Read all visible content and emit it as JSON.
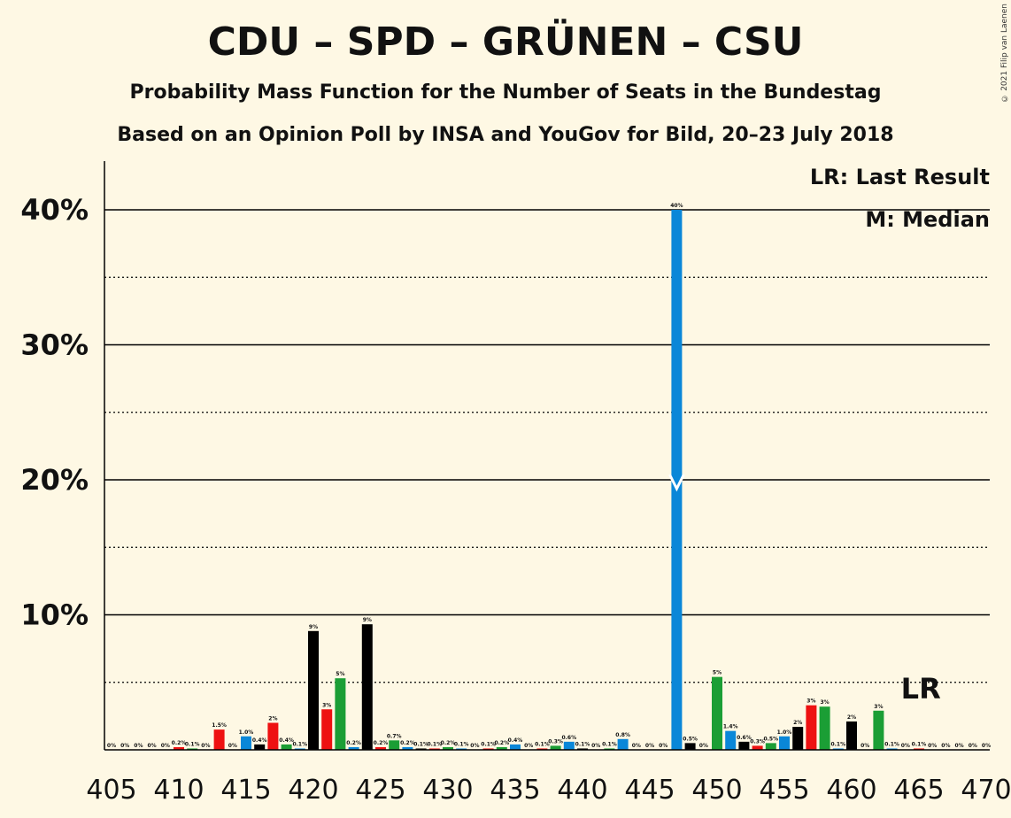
{
  "title": "CDU – SPD – GRÜNEN – CSU",
  "subtitle_1": "Probability Mass Function for the Number of Seats in the Bundestag",
  "subtitle_2": "Based on an Opinion Poll by INSA and YouGov for Bild, 20–23 July 2018",
  "copyright": "© 2021 Filip van Laenen",
  "legend": {
    "last_result": "LR: Last Result",
    "median": "M: Median"
  },
  "markers": {
    "last_result_label": "LR",
    "last_result_seat": 466,
    "median_label": "M",
    "median_seat": 447
  },
  "colors": {
    "background": "#fef8e4",
    "black": "#000000",
    "red": "#ee1111",
    "green": "#1b9e35",
    "blue": "#0a87d8"
  },
  "chart_data": {
    "type": "bar",
    "xlim": [
      405,
      470
    ],
    "ylim": [
      0,
      40
    ],
    "x_ticks": [
      "405",
      "410",
      "415",
      "420",
      "425",
      "430",
      "435",
      "440",
      "445",
      "450",
      "455",
      "460",
      "465",
      "470"
    ],
    "y_ticks": [
      "10%",
      "20%",
      "30%",
      "40%"
    ],
    "bars": [
      {
        "x": 405,
        "value": 0,
        "label": "0%",
        "color": "black"
      },
      {
        "x": 406,
        "value": 0,
        "label": "0%",
        "color": "red"
      },
      {
        "x": 407,
        "value": 0,
        "label": "0%",
        "color": "green"
      },
      {
        "x": 408,
        "value": 0,
        "label": "0%",
        "color": "blue"
      },
      {
        "x": 409,
        "value": 0,
        "label": "0%",
        "color": "black"
      },
      {
        "x": 410,
        "value": 0.2,
        "label": "0.2%",
        "color": "red"
      },
      {
        "x": 411,
        "value": 0.1,
        "label": "0.1%",
        "color": "green"
      },
      {
        "x": 412,
        "value": 0,
        "label": "0%",
        "color": "blue"
      },
      {
        "x": 413,
        "value": 1.5,
        "label": "1.5%",
        "color": "red"
      },
      {
        "x": 414,
        "value": 0,
        "label": "0%",
        "color": "green"
      },
      {
        "x": 415,
        "value": 1.0,
        "label": "1.0%",
        "color": "blue"
      },
      {
        "x": 416,
        "value": 0.4,
        "label": "0.4%",
        "color": "black"
      },
      {
        "x": 417,
        "value": 2,
        "label": "2%",
        "color": "red"
      },
      {
        "x": 418,
        "value": 0.4,
        "label": "0.4%",
        "color": "green"
      },
      {
        "x": 419,
        "value": 0.1,
        "label": "0.1%",
        "color": "blue"
      },
      {
        "x": 420,
        "value": 8.8,
        "label": "9%",
        "color": "black"
      },
      {
        "x": 421,
        "value": 3,
        "label": "3%",
        "color": "red"
      },
      {
        "x": 422,
        "value": 5.3,
        "label": "5%",
        "color": "green"
      },
      {
        "x": 423,
        "value": 0.2,
        "label": "0.2%",
        "color": "blue"
      },
      {
        "x": 424,
        "value": 9.3,
        "label": "9%",
        "color": "black"
      },
      {
        "x": 425,
        "value": 0.2,
        "label": "0.2%",
        "color": "red"
      },
      {
        "x": 426,
        "value": 0.7,
        "label": "0.7%",
        "color": "green"
      },
      {
        "x": 427,
        "value": 0.2,
        "label": "0.2%",
        "color": "blue"
      },
      {
        "x": 428,
        "value": 0.1,
        "label": "0.1%",
        "color": "black"
      },
      {
        "x": 429,
        "value": 0.1,
        "label": "0.1%",
        "color": "red"
      },
      {
        "x": 430,
        "value": 0.2,
        "label": "0.2%",
        "color": "green"
      },
      {
        "x": 431,
        "value": 0.1,
        "label": "0.1%",
        "color": "blue"
      },
      {
        "x": 432,
        "value": 0,
        "label": "0%",
        "color": "black"
      },
      {
        "x": 433,
        "value": 0.1,
        "label": "0.1%",
        "color": "red"
      },
      {
        "x": 434,
        "value": 0.2,
        "label": "0.2%",
        "color": "green"
      },
      {
        "x": 435,
        "value": 0.4,
        "label": "0.4%",
        "color": "blue"
      },
      {
        "x": 436,
        "value": 0,
        "label": "0%",
        "color": "black"
      },
      {
        "x": 437,
        "value": 0.1,
        "label": "0.1%",
        "color": "red"
      },
      {
        "x": 438,
        "value": 0.3,
        "label": "0.3%",
        "color": "green"
      },
      {
        "x": 439,
        "value": 0.6,
        "label": "0.6%",
        "color": "blue"
      },
      {
        "x": 440,
        "value": 0.1,
        "label": "0.1%",
        "color": "black"
      },
      {
        "x": 441,
        "value": 0,
        "label": "0%",
        "color": "red"
      },
      {
        "x": 442,
        "value": 0.1,
        "label": "0.1%",
        "color": "green"
      },
      {
        "x": 443,
        "value": 0.8,
        "label": "0.8%",
        "color": "blue"
      },
      {
        "x": 444,
        "value": 0,
        "label": "0%",
        "color": "black"
      },
      {
        "x": 445,
        "value": 0,
        "label": "0%",
        "color": "red"
      },
      {
        "x": 446,
        "value": 0,
        "label": "0%",
        "color": "green"
      },
      {
        "x": 447,
        "value": 40,
        "label": "40%",
        "color": "blue"
      },
      {
        "x": 448,
        "value": 0.5,
        "label": "0.5%",
        "color": "black"
      },
      {
        "x": 449,
        "value": 0,
        "label": "0%",
        "color": "red"
      },
      {
        "x": 450,
        "value": 5.4,
        "label": "5%",
        "color": "green"
      },
      {
        "x": 451,
        "value": 1.4,
        "label": "1.4%",
        "color": "blue"
      },
      {
        "x": 452,
        "value": 0.6,
        "label": "0.6%",
        "color": "black"
      },
      {
        "x": 453,
        "value": 0.3,
        "label": "0.3%",
        "color": "red"
      },
      {
        "x": 454,
        "value": 0.5,
        "label": "0.5%",
        "color": "green"
      },
      {
        "x": 455,
        "value": 1.0,
        "label": "1.0%",
        "color": "blue"
      },
      {
        "x": 456,
        "value": 1.7,
        "label": "2%",
        "color": "black"
      },
      {
        "x": 457,
        "value": 3.3,
        "label": "3%",
        "color": "red"
      },
      {
        "x": 458,
        "value": 3.2,
        "label": "3%",
        "color": "green"
      },
      {
        "x": 459,
        "value": 0.1,
        "label": "0.1%",
        "color": "blue"
      },
      {
        "x": 460,
        "value": 2.1,
        "label": "2%",
        "color": "black"
      },
      {
        "x": 461,
        "value": 0,
        "label": "0%",
        "color": "red"
      },
      {
        "x": 462,
        "value": 2.9,
        "label": "3%",
        "color": "green"
      },
      {
        "x": 463,
        "value": 0.1,
        "label": "0.1%",
        "color": "blue"
      },
      {
        "x": 464,
        "value": 0,
        "label": "0%",
        "color": "black"
      },
      {
        "x": 465,
        "value": 0.1,
        "label": "0.1%",
        "color": "red"
      },
      {
        "x": 466,
        "value": 0,
        "label": "0%",
        "color": "green"
      },
      {
        "x": 467,
        "value": 0,
        "label": "0%",
        "color": "blue"
      },
      {
        "x": 468,
        "value": 0,
        "label": "0%",
        "color": "black"
      },
      {
        "x": 469,
        "value": 0,
        "label": "0%",
        "color": "red"
      },
      {
        "x": 470,
        "value": 0,
        "label": "0%",
        "color": "green"
      }
    ]
  }
}
